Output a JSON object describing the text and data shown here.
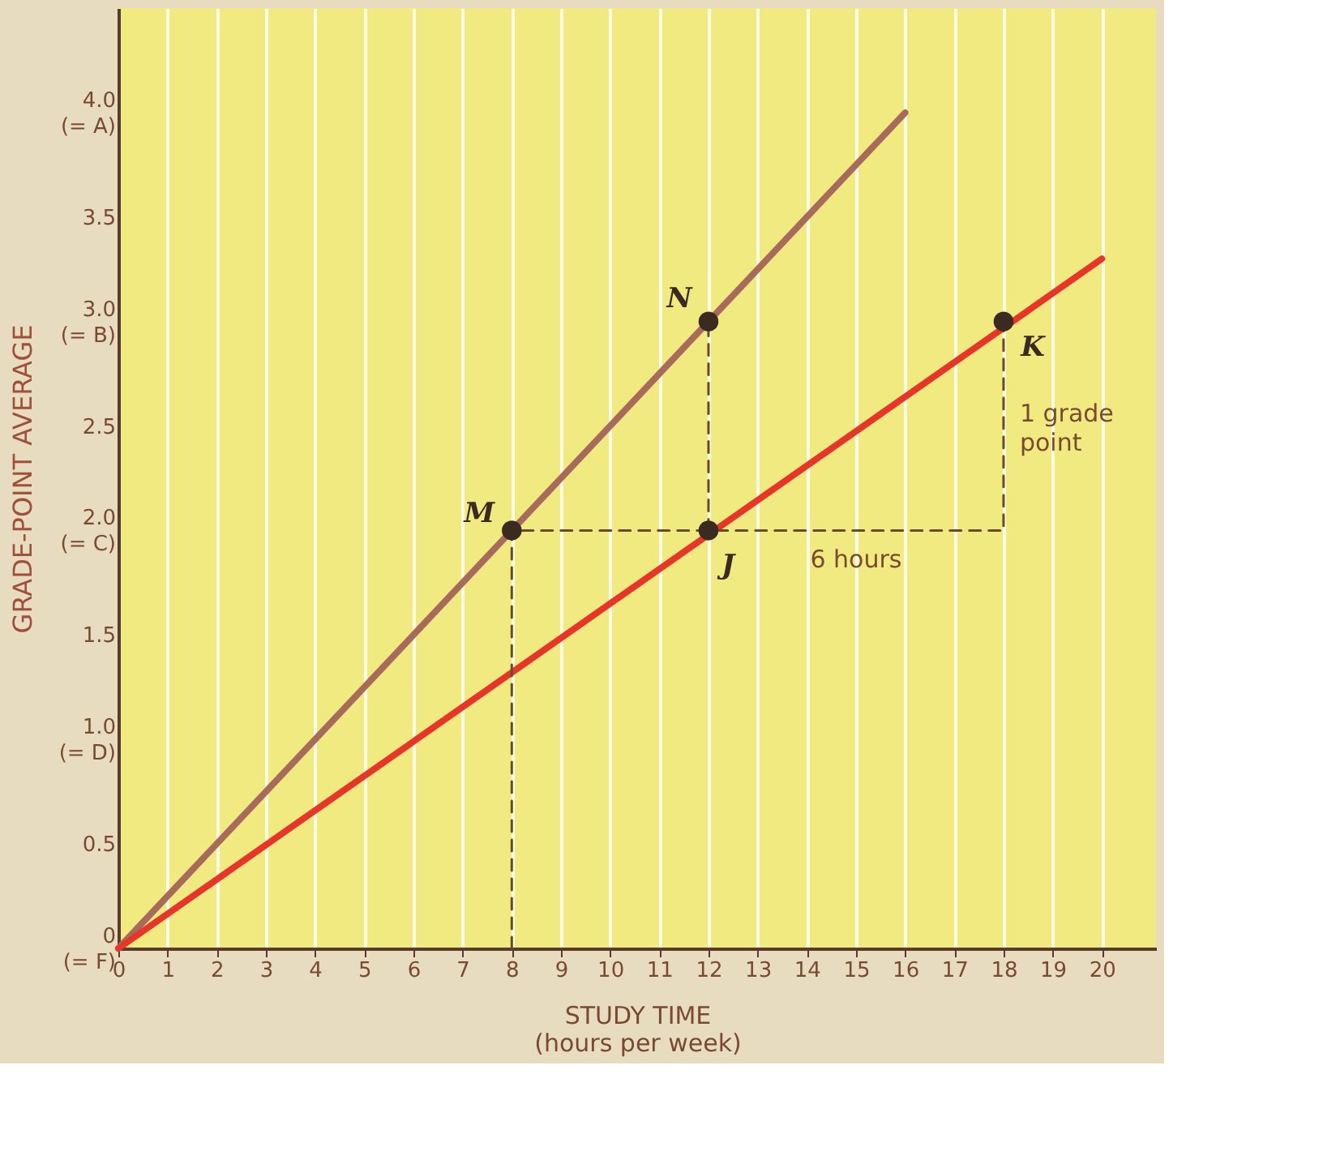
{
  "chart_data": {
    "type": "line",
    "xlabel": "STUDY TIME\n(hours per week)",
    "ylabel": "GRADE-POINT AVERAGE",
    "series": [
      {
        "color": "#a86a5a",
        "x": [
          0,
          16
        ],
        "values": [
          0,
          4
        ]
      },
      {
        "color": "#e8352a",
        "x": [
          0,
          20
        ],
        "values": [
          0,
          3.3
        ]
      },
      {
        "color": "#6b4a2a",
        "line_style": "dashed",
        "x": [
          8,
          8,
          18,
          18
        ],
        "values": [
          0,
          2,
          2,
          3
        ]
      },
      {
        "color": "#6b4a2a",
        "line_style": "dashed",
        "x": [
          12,
          12
        ],
        "values": [
          2,
          3
        ]
      },
      {
        "type": "scatter",
        "color": "#3a2a20",
        "marker": "circle",
        "x": [
          8,
          12,
          12,
          18
        ],
        "values": [
          2,
          3,
          2,
          3
        ]
      }
    ],
    "annotations": [
      {
        "text": "M",
        "x": 8,
        "y": 2
      },
      {
        "text": "N",
        "x": 12,
        "y": 3
      },
      {
        "text": "J",
        "x": 12,
        "y": 2
      },
      {
        "text": "K",
        "x": 18,
        "y": 3
      },
      {
        "text": "6 hours",
        "x": 15,
        "y": 2
      },
      {
        "text": "1 grade\npoint",
        "x": 18,
        "y": 2.5
      }
    ],
    "xlim": [
      0,
      21.1
    ],
    "ylim": [
      0,
      4.5
    ],
    "xticks": [
      0,
      1,
      2,
      3,
      4,
      5,
      6,
      7,
      8,
      9,
      10,
      11,
      12,
      13,
      14,
      15,
      16,
      17,
      18,
      19,
      20
    ],
    "yticks": [
      {
        "value": 0,
        "label": "0\n(= F)"
      },
      0.5,
      {
        "value": 1,
        "label": "1.0\n(= D)"
      },
      1.5,
      {
        "value": 2,
        "label": "2.0\n(= C)"
      },
      2.5,
      {
        "value": 3,
        "label": "3.0\n(= B)"
      },
      3.5,
      {
        "value": 4,
        "label": "4.0\n(= A)"
      }
    ],
    "grid": "x"
  }
}
